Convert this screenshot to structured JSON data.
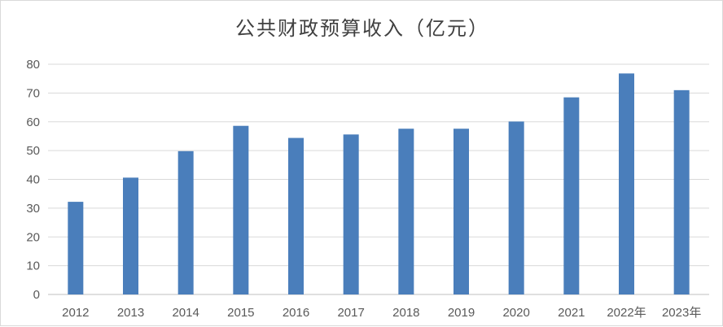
{
  "chart_data": {
    "type": "bar",
    "title": "公共财政预算收入（亿元）",
    "xlabel": "",
    "ylabel": "",
    "categories": [
      "2012",
      "2013",
      "2014",
      "2015",
      "2016",
      "2017",
      "2018",
      "2019",
      "2020",
      "2021",
      "2022年",
      "2023年"
    ],
    "series": [
      {
        "values": [
          32.2,
          40.6,
          49.8,
          58.6,
          54.4,
          55.6,
          57.6,
          57.6,
          60.1,
          68.5,
          76.8,
          71.0
        ]
      }
    ],
    "ylim": [
      0,
      80
    ],
    "yticks": [
      "0",
      "10",
      "20",
      "30",
      "40",
      "50",
      "60",
      "70",
      "80"
    ],
    "grid": true,
    "legend": "none",
    "colors": {
      "bar": "#4a7ebb",
      "grid": "#d9d9d9",
      "axis": "#bfbfbf"
    }
  }
}
